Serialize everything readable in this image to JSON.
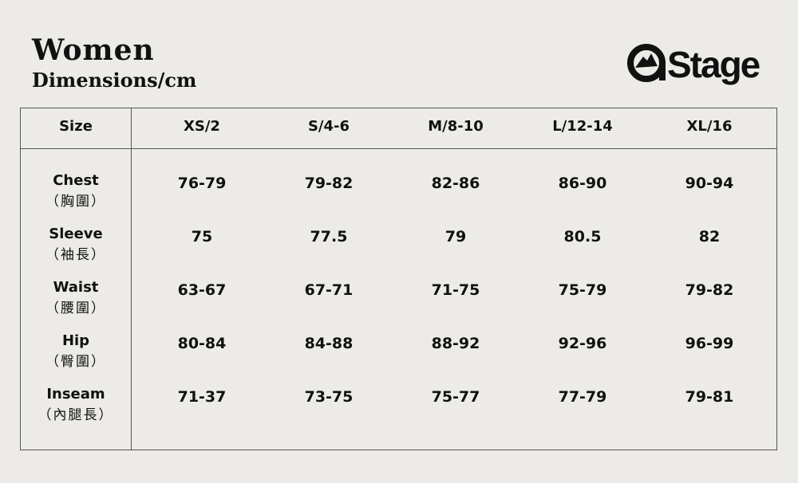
{
  "header": {
    "title": "Women",
    "subtitle": "Dimensions/cm"
  },
  "logo": {
    "text": "Stage",
    "icon": "mountain-circle-icon"
  },
  "table": {
    "corner": "Size",
    "sizes": [
      "XS/2",
      "S/4-6",
      "M/8-10",
      "L/12-14",
      "XL/16"
    ],
    "rows": [
      {
        "label": "Chest",
        "label_zh": "（胸圍）",
        "values": [
          "76-79",
          "79-82",
          "82-86",
          "86-90",
          "90-94"
        ]
      },
      {
        "label": "Sleeve",
        "label_zh": "（袖長）",
        "values": [
          "75",
          "77.5",
          "79",
          "80.5",
          "82"
        ]
      },
      {
        "label": "Waist",
        "label_zh": "（腰圍）",
        "values": [
          "63-67",
          "67-71",
          "71-75",
          "75-79",
          "79-82"
        ]
      },
      {
        "label": "Hip",
        "label_zh": "（臀圍）",
        "values": [
          "80-84",
          "84-88",
          "88-92",
          "92-96",
          "96-99"
        ]
      },
      {
        "label": "Inseam",
        "label_zh": "（內腿長）",
        "values": [
          "71-37",
          "73-75",
          "75-77",
          "77-79",
          "79-81"
        ]
      }
    ]
  }
}
